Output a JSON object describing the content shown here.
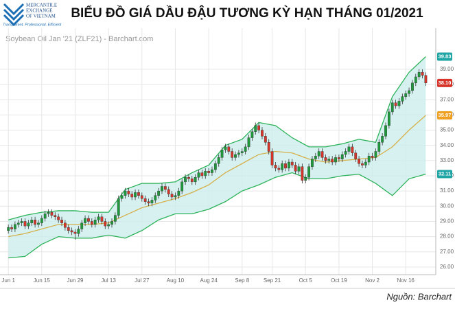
{
  "header": {
    "logo_lines": [
      "MERCANTILE",
      "EXCHANGE",
      "OF VIETNAM"
    ],
    "tagline": "Transparent. Professional. Efficient",
    "title": "BIỂU ĐỒ GIÁ DẦU ĐẬU TƯƠNG KỲ HẠN THÁNG 01/2021"
  },
  "source": "Nguồn: Barchart",
  "chart_data": {
    "type": "candlestick",
    "subtitle": "Soybean Oil Jan '21 (ZLF21) - Barchart.com",
    "up_color": "#1f9a3a",
    "down_color": "#d8352a",
    "band_color": "#2db35a",
    "middle_color": "#d6b04a",
    "band_fill": "#cdeeee",
    "grid": true,
    "xlim": [
      -2.5,
      128
    ],
    "ylim": [
      25.5,
      40.8
    ],
    "xticks": [
      {
        "value": 0,
        "label": "Jun 1"
      },
      {
        "value": 10,
        "label": "Jun 15"
      },
      {
        "value": 20,
        "label": "Jun 29"
      },
      {
        "value": 30,
        "label": "Jul 13"
      },
      {
        "value": 40,
        "label": "Jul 27"
      },
      {
        "value": 50,
        "label": "Aug 10"
      },
      {
        "value": 60,
        "label": "Aug 24"
      },
      {
        "value": 70,
        "label": "Sep 8"
      },
      {
        "value": 79,
        "label": "Sep 21"
      },
      {
        "value": 89,
        "label": "Oct 5"
      },
      {
        "value": 99,
        "label": "Oct 19"
      },
      {
        "value": 109,
        "label": "Nov 2"
      },
      {
        "value": 119,
        "label": "Nov 16"
      }
    ],
    "yticks": [
      {
        "value": 26,
        "label": "26.00"
      },
      {
        "value": 27,
        "label": "27.00"
      },
      {
        "value": 28,
        "label": "28.00"
      },
      {
        "value": 29,
        "label": "29.00"
      },
      {
        "value": 30,
        "label": "30.00"
      },
      {
        "value": 31,
        "label": "31.00"
      },
      {
        "value": 32,
        "label": "32.00"
      },
      {
        "value": 33,
        "label": "33.00"
      },
      {
        "value": 34,
        "label": "34.00"
      },
      {
        "value": 35,
        "label": "35.00"
      },
      {
        "value": 36,
        "label": "36.00"
      },
      {
        "value": 37,
        "label": "37.00"
      },
      {
        "value": 38,
        "label": "38.00"
      },
      {
        "value": 39,
        "label": "39.00"
      }
    ],
    "open": [
      28.4,
      28.6,
      28.5,
      28.8,
      28.9,
      29.0,
      28.7,
      28.9,
      29.1,
      28.8,
      28.9,
      29.2,
      29.5,
      29.6,
      29.4,
      29.3,
      29.1,
      28.9,
      28.6,
      28.4,
      28.3,
      28.2,
      28.5,
      28.9,
      29.2,
      29.0,
      28.8,
      29.1,
      29.3,
      29.0,
      28.7,
      28.8,
      29.0,
      29.4,
      30.5,
      30.7,
      31.0,
      30.8,
      30.6,
      30.9,
      30.7,
      30.5,
      30.3,
      30.2,
      30.4,
      30.7,
      31.0,
      31.3,
      31.1,
      30.8,
      30.6,
      30.7,
      31.0,
      31.6,
      31.9,
      31.8,
      31.6,
      31.9,
      32.2,
      32.0,
      32.3,
      32.2,
      32.4,
      32.8,
      33.2,
      33.7,
      33.9,
      33.6,
      33.2,
      33.4,
      33.5,
      33.6,
      33.9,
      34.5,
      34.9,
      35.3,
      35.0,
      34.6,
      34.2,
      33.6,
      32.7,
      32.5,
      32.4,
      32.8,
      32.5,
      32.9,
      32.7,
      32.3,
      32.6,
      31.7,
      31.9,
      32.6,
      33.1,
      33.3,
      33.6,
      33.2,
      33.0,
      33.1,
      32.9,
      33.2,
      33.1,
      33.4,
      33.6,
      33.9,
      33.5,
      33.1,
      32.8,
      32.7,
      32.9,
      33.3,
      33.2,
      33.6,
      34.2,
      34.6,
      35.3,
      36.2,
      36.8,
      36.6,
      36.9,
      37.2,
      37.4,
      37.6,
      38.1,
      38.5,
      38.8,
      38.6
    ],
    "high": [
      28.8,
      28.8,
      29.0,
      29.1,
      29.2,
      29.2,
      29.1,
      29.3,
      29.3,
      29.1,
      29.4,
      29.7,
      29.8,
      29.8,
      29.6,
      29.5,
      29.3,
      29.1,
      28.8,
      28.6,
      28.5,
      28.7,
      29.1,
      29.4,
      29.4,
      29.2,
      29.3,
      29.5,
      29.5,
      29.2,
      29.0,
      29.2,
      29.6,
      30.7,
      30.9,
      31.2,
      31.2,
      31.0,
      31.1,
      31.1,
      30.9,
      30.7,
      30.5,
      30.6,
      30.9,
      31.2,
      31.5,
      31.5,
      31.3,
      31.0,
      30.9,
      31.2,
      31.8,
      32.1,
      32.1,
      32.0,
      32.1,
      32.4,
      32.4,
      32.5,
      32.5,
      32.6,
      33.0,
      33.4,
      33.9,
      34.1,
      34.1,
      33.8,
      33.6,
      33.7,
      33.8,
      34.1,
      34.7,
      35.1,
      35.5,
      35.5,
      35.2,
      34.8,
      34.4,
      33.8,
      32.9,
      32.7,
      33.0,
      33.0,
      33.1,
      33.1,
      32.9,
      32.8,
      32.8,
      32.1,
      32.8,
      33.3,
      33.5,
      33.8,
      33.8,
      33.4,
      33.3,
      33.3,
      33.4,
      33.4,
      33.6,
      33.8,
      34.1,
      34.1,
      33.7,
      33.3,
      33.0,
      33.1,
      33.5,
      33.5,
      33.8,
      34.4,
      34.8,
      35.5,
      36.4,
      37.0,
      37.0,
      37.1,
      37.4,
      37.6,
      37.8,
      38.3,
      38.7,
      39.0,
      39.0,
      38.8
    ],
    "low": [
      28.2,
      28.3,
      28.3,
      28.6,
      28.7,
      28.5,
      28.5,
      28.7,
      28.6,
      28.6,
      28.7,
      29.0,
      29.3,
      29.2,
      29.1,
      28.9,
      28.7,
      28.4,
      28.2,
      28.1,
      27.8,
      28.0,
      28.3,
      28.7,
      28.8,
      28.6,
      28.6,
      28.9,
      28.8,
      28.5,
      28.5,
      28.6,
      28.8,
      29.2,
      30.3,
      30.5,
      30.6,
      30.4,
      30.4,
      30.5,
      30.3,
      30.1,
      30.0,
      30.0,
      30.2,
      30.5,
      30.8,
      30.9,
      30.6,
      30.4,
      30.4,
      30.5,
      30.8,
      31.4,
      31.6,
      31.4,
      31.4,
      31.7,
      31.8,
      31.8,
      32.0,
      32.0,
      32.2,
      32.6,
      33.0,
      33.5,
      33.4,
      33.0,
      33.0,
      33.2,
      33.3,
      33.4,
      33.7,
      34.3,
      34.7,
      34.8,
      34.4,
      34.0,
      33.4,
      32.5,
      32.3,
      32.2,
      32.2,
      32.3,
      32.3,
      32.5,
      32.1,
      32.1,
      31.5,
      31.5,
      31.7,
      32.4,
      32.9,
      33.1,
      33.0,
      32.8,
      32.8,
      32.7,
      32.7,
      32.9,
      32.9,
      33.2,
      33.4,
      33.3,
      32.9,
      32.6,
      32.5,
      32.5,
      32.7,
      33.0,
      33.0,
      33.4,
      34.0,
      34.4,
      35.1,
      36.0,
      36.4,
      36.4,
      36.7,
      37.0,
      37.2,
      37.4,
      37.9,
      38.3,
      38.4,
      37.9
    ],
    "close": [
      28.6,
      28.5,
      28.8,
      28.9,
      29.0,
      28.7,
      28.9,
      29.1,
      28.8,
      28.9,
      29.2,
      29.5,
      29.6,
      29.4,
      29.3,
      29.1,
      28.9,
      28.6,
      28.4,
      28.3,
      28.2,
      28.5,
      28.9,
      29.2,
      29.0,
      28.8,
      29.1,
      29.3,
      29.0,
      28.7,
      28.8,
      29.0,
      29.4,
      30.5,
      30.7,
      31.0,
      30.8,
      30.6,
      30.9,
      30.7,
      30.5,
      30.3,
      30.2,
      30.4,
      30.7,
      31.0,
      31.3,
      31.1,
      30.8,
      30.6,
      30.7,
      31.0,
      31.6,
      31.9,
      31.8,
      31.6,
      31.9,
      32.2,
      32.0,
      32.3,
      32.2,
      32.4,
      32.8,
      33.2,
      33.7,
      33.9,
      33.6,
      33.2,
      33.4,
      33.5,
      33.6,
      33.9,
      34.5,
      34.9,
      35.3,
      35.0,
      34.6,
      34.2,
      33.6,
      32.7,
      32.5,
      32.4,
      32.8,
      32.5,
      32.9,
      32.7,
      32.3,
      32.6,
      31.7,
      31.9,
      32.6,
      33.1,
      33.3,
      33.6,
      33.2,
      33.0,
      33.1,
      32.9,
      33.2,
      33.1,
      33.4,
      33.6,
      33.9,
      33.5,
      33.1,
      32.8,
      32.7,
      32.9,
      33.3,
      33.2,
      33.6,
      34.2,
      34.6,
      35.3,
      36.2,
      36.8,
      36.6,
      36.9,
      37.2,
      37.4,
      37.6,
      38.1,
      38.5,
      38.8,
      38.6,
      38.1
    ],
    "bands": {
      "x": [
        0,
        5,
        10,
        15,
        20,
        25,
        30,
        35,
        40,
        45,
        50,
        55,
        60,
        65,
        70,
        75,
        80,
        85,
        90,
        95,
        100,
        105,
        110,
        115,
        120,
        125
      ],
      "upper": [
        29.1,
        29.4,
        29.6,
        29.7,
        29.7,
        29.6,
        29.6,
        31.1,
        31.5,
        31.5,
        31.6,
        32.2,
        32.7,
        34.0,
        34.4,
        35.5,
        35.3,
        34.5,
        33.9,
        33.9,
        34.1,
        34.4,
        34.2,
        37.2,
        38.8,
        39.83
      ],
      "middle": [
        28.0,
        28.2,
        28.5,
        28.8,
        28.8,
        28.8,
        28.9,
        29.4,
        29.9,
        30.2,
        30.5,
        30.9,
        31.4,
        32.2,
        32.8,
        33.4,
        33.6,
        33.5,
        33.1,
        32.9,
        33.0,
        33.1,
        33.2,
        33.9,
        35.0,
        35.97
      ],
      "lower": [
        26.6,
        26.7,
        27.5,
        28.0,
        27.9,
        27.9,
        28.1,
        27.9,
        28.4,
        29.1,
        29.5,
        29.5,
        29.8,
        30.3,
        31.0,
        31.4,
        31.9,
        32.2,
        31.8,
        31.8,
        32.0,
        32.1,
        31.5,
        30.7,
        31.8,
        32.11
      ]
    },
    "price_tags": [
      {
        "value": 39.83,
        "label": "39.83",
        "color": "#1fa5a5"
      },
      {
        "value": 38.1,
        "label": "38.10",
        "color": "#d8352a"
      },
      {
        "value": 35.97,
        "label": "35.97",
        "color": "#f0a020"
      },
      {
        "value": 32.11,
        "label": "32.11",
        "color": "#1fa5a5"
      }
    ]
  }
}
